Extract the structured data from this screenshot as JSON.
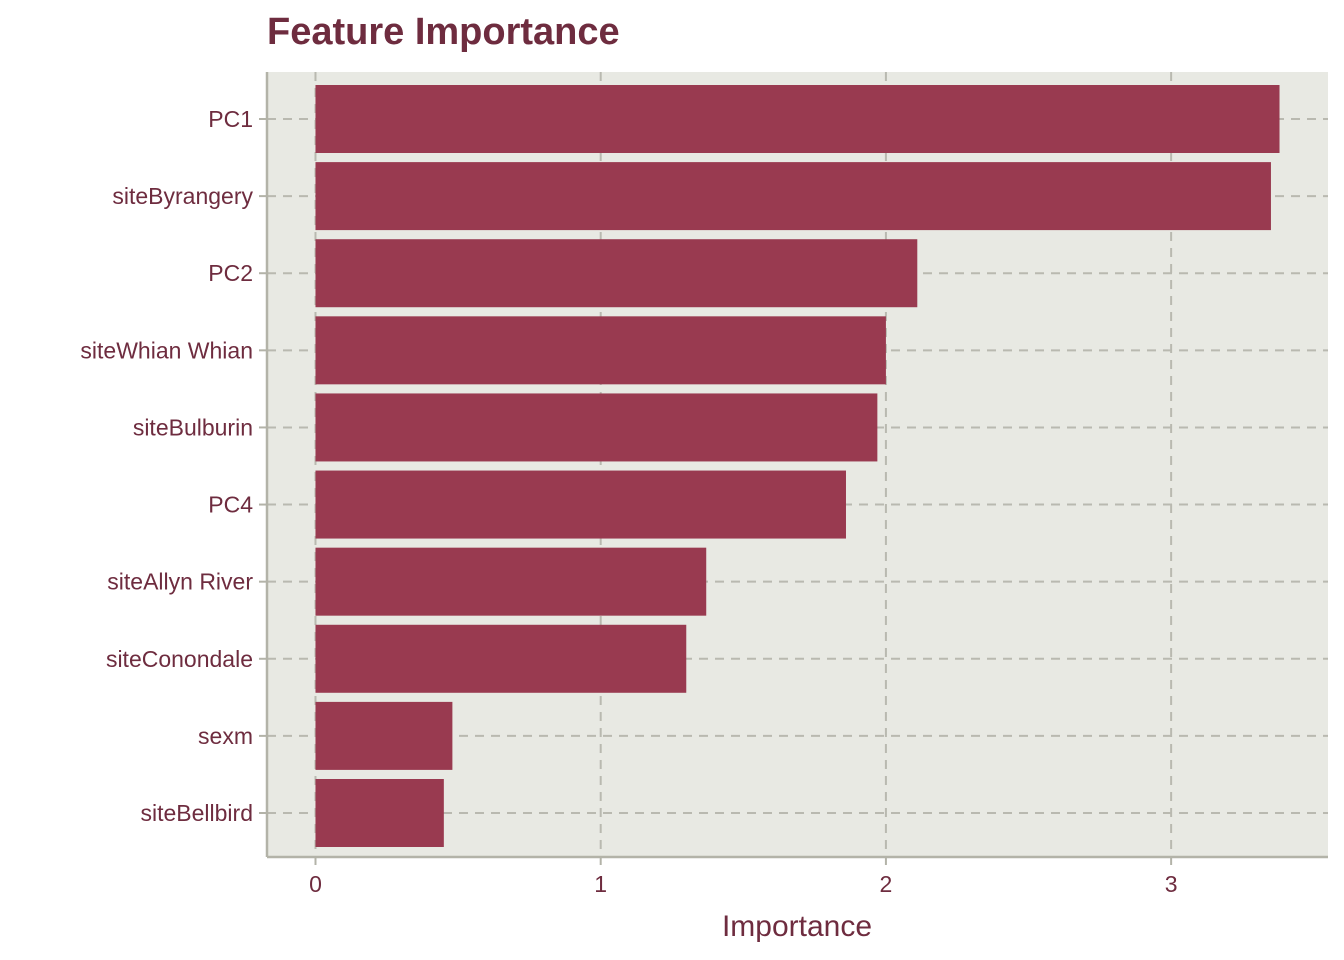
{
  "colors": {
    "text": "#6e2c3f",
    "bar": "#993a50",
    "panel_bg": "#e8e9e3",
    "grid": "#b9b9b0",
    "axis": "#b3b3a8"
  },
  "chart_data": {
    "type": "bar",
    "orientation": "horizontal",
    "title": "Feature Importance",
    "xlabel": "Importance",
    "ylabel": "",
    "categories": [
      "PC1",
      "siteByrangery",
      "PC2",
      "siteWhian Whian",
      "siteBulburin",
      "PC4",
      "siteAllyn River",
      "siteConondale",
      "sexm",
      "siteBellbird"
    ],
    "values": [
      3.38,
      3.35,
      2.11,
      2.0,
      1.97,
      1.86,
      1.37,
      1.3,
      0.48,
      0.45
    ],
    "xlim": [
      -0.17,
      3.55
    ],
    "xticks": [
      0,
      1,
      2,
      3
    ],
    "xtick_labels": [
      "0",
      "1",
      "2",
      "3"
    ],
    "grid": true,
    "grid_style": "dashed"
  }
}
